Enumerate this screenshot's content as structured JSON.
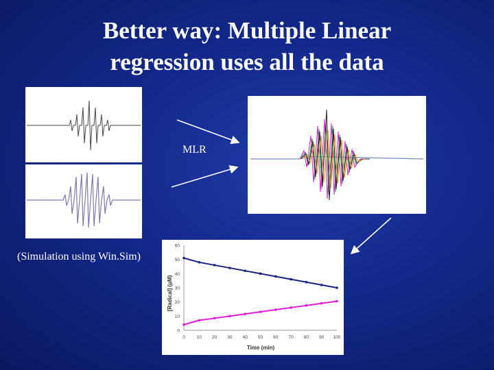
{
  "title": {
    "line1": "Better way: Multiple Linear",
    "line2": "regression uses all the data"
  },
  "labels": {
    "mlr": "MLR",
    "simulation": "(Simulation using Win.Sim)"
  },
  "colors": {
    "series_top": "#1a237e",
    "series_bottom": "#e01cd6",
    "arrow": "#ffffff"
  },
  "chart_data": {
    "type": "scatter",
    "ylabel": "[Radical] (μM)",
    "xlabel": "Time (min)",
    "xlim": [
      0,
      100
    ],
    "ylim": [
      0,
      60
    ],
    "xticks": [
      0,
      10,
      20,
      30,
      40,
      50,
      60,
      70,
      80,
      90,
      100
    ],
    "yticks": [
      0,
      10,
      20,
      30,
      40,
      50,
      60
    ],
    "series": [
      {
        "x": [
          0,
          10,
          20,
          30,
          40,
          50,
          60,
          70,
          80,
          90,
          100
        ],
        "y": [
          51,
          48,
          46,
          44,
          42,
          40,
          38,
          36,
          34,
          32,
          30
        ]
      },
      {
        "x": [
          0,
          10,
          20,
          30,
          40,
          50,
          60,
          70,
          80,
          90,
          100
        ],
        "y": [
          4,
          7,
          8.5,
          10,
          11.5,
          13,
          14.5,
          16,
          17.5,
          19,
          20.5
        ]
      }
    ]
  }
}
